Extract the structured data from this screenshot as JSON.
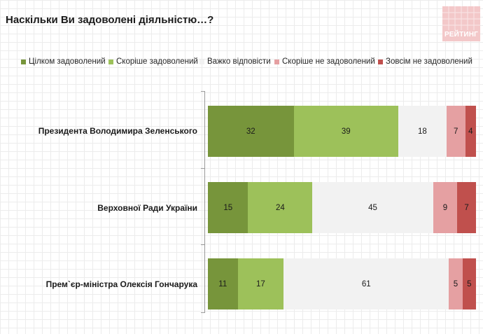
{
  "colors": {
    "fully_satisfied": "#77953b",
    "rather_satisfied": "#9dc15a",
    "hard_to_say": "#f2f2f2",
    "rather_dissatisfied": "#e5a0a2",
    "not_satisfied": "#c0504d"
  },
  "logo": {
    "text": "РЕЙТИНГ"
  },
  "chart_data": {
    "type": "bar",
    "orientation": "horizontal",
    "stacked": true,
    "title": "Наскільки Ви задоволені діяльністю…?",
    "legend_position": "top",
    "grid": false,
    "xlim": [
      0,
      100
    ],
    "categories": [
      "Президента Володимира Зеленського",
      "Верховної Ради України",
      "Прем`єр-міністра Олексія Гончарука"
    ],
    "series": [
      {
        "name": "Цілком задоволений",
        "color": "#77953b",
        "values": [
          32,
          15,
          11
        ]
      },
      {
        "name": "Скоріше задоволений",
        "color": "#9dc15a",
        "values": [
          39,
          24,
          17
        ]
      },
      {
        "name": "Важко відповісти",
        "color": "#f2f2f2",
        "values": [
          18,
          45,
          61
        ]
      },
      {
        "name": "Скоріше не задоволений",
        "color": "#e5a0a2",
        "values": [
          7,
          9,
          5
        ]
      },
      {
        "name": "Зовсім не задоволений",
        "color": "#c0504d",
        "values": [
          4,
          7,
          5
        ]
      }
    ]
  }
}
